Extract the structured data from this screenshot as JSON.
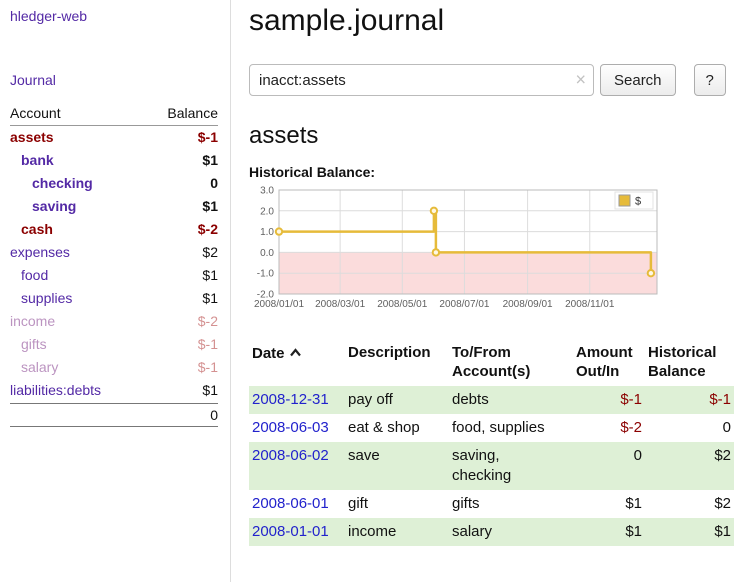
{
  "icons": {
    "clear": "×",
    "sort_asc": "chevron-up"
  },
  "sidebar": {
    "app_title": "hledger-web",
    "nav_journal": "Journal",
    "accounts_header": {
      "account": "Account",
      "balance": "Balance"
    },
    "accounts": [
      {
        "name": "assets",
        "balance": "$-1",
        "indent": 1,
        "name_style": "red-bold",
        "balance_style": "red-bold"
      },
      {
        "name": "bank",
        "balance": "$1",
        "indent": 2,
        "name_style": "purple-bold",
        "balance_style": "black-bold"
      },
      {
        "name": "checking",
        "balance": "0",
        "indent": 3,
        "name_style": "purple-bold",
        "balance_style": "black-bold"
      },
      {
        "name": "saving",
        "balance": "$1",
        "indent": 3,
        "name_style": "purple-bold",
        "balance_style": "black-bold"
      },
      {
        "name": "cash",
        "balance": "$-2",
        "indent": 2,
        "name_style": "red-bold",
        "balance_style": "red-bold"
      },
      {
        "name": "expenses",
        "balance": "$2",
        "indent": 1,
        "name_style": "purple",
        "balance_style": "black"
      },
      {
        "name": "food",
        "balance": "$1",
        "indent": 2,
        "name_style": "purple",
        "balance_style": "black"
      },
      {
        "name": "supplies",
        "balance": "$1",
        "indent": 2,
        "name_style": "purple",
        "balance_style": "black"
      },
      {
        "name": "income",
        "balance": "$-2",
        "indent": 1,
        "name_style": "faded-purple",
        "balance_style": "faded-red"
      },
      {
        "name": "gifts",
        "balance": "$-1",
        "indent": 2,
        "name_style": "faded-purple",
        "balance_style": "faded-red"
      },
      {
        "name": "salary",
        "balance": "$-1",
        "indent": 2,
        "name_style": "faded-purple",
        "balance_style": "faded-red"
      },
      {
        "name": "liabilities:debts",
        "balance": "$1",
        "indent": 1,
        "name_style": "purple",
        "balance_style": "black"
      }
    ],
    "total": "0"
  },
  "main": {
    "title": "sample.journal",
    "search": {
      "value": "inacct:assets",
      "search_button": "Search",
      "help_button": "?"
    },
    "register": {
      "heading": "assets",
      "chart_label": "Historical Balance:",
      "columns": [
        "Date",
        "Description",
        "To/From Account(s)",
        "Amount Out/In",
        "Historical Balance"
      ],
      "rows": [
        {
          "date": "2008-12-31",
          "description": "pay off",
          "accounts_lines": [
            "debts"
          ],
          "amount": "$-1",
          "amount_negative": true,
          "balance": "$-1",
          "balance_negative": true
        },
        {
          "date": "2008-06-03",
          "description": "eat & shop",
          "accounts_lines": [
            "food, supplies"
          ],
          "amount": "$-2",
          "amount_negative": true,
          "balance": "0",
          "balance_negative": false
        },
        {
          "date": "2008-06-02",
          "description": "save",
          "accounts_lines": [
            "saving,",
            "checking"
          ],
          "amount": "0",
          "amount_negative": false,
          "balance": "$2",
          "balance_negative": false
        },
        {
          "date": "2008-06-01",
          "description": "gift",
          "accounts_lines": [
            "gifts"
          ],
          "amount": "$1",
          "amount_negative": false,
          "balance": "$2",
          "balance_negative": false
        },
        {
          "date": "2008-01-01",
          "description": "income",
          "accounts_lines": [
            "salary"
          ],
          "amount": "$1",
          "amount_negative": false,
          "balance": "$1",
          "balance_negative": false
        }
      ]
    }
  },
  "chart_data": {
    "type": "line",
    "step": true,
    "title": "Historical Balance:",
    "series": [
      {
        "name": "$",
        "color": "#e6bb3a",
        "points": [
          [
            "2008-01-01",
            1
          ],
          [
            "2008-06-01",
            2
          ],
          [
            "2008-06-03",
            0
          ],
          [
            "2008-12-31",
            -1
          ]
        ]
      }
    ],
    "x_ticks": [
      "2008/01/01",
      "2008/03/01",
      "2008/05/01",
      "2008/07/01",
      "2008/09/01",
      "2008/11/01"
    ],
    "x_domain": [
      "2008-01-01",
      "2009-01-06"
    ],
    "y_ticks": [
      3,
      2,
      1,
      0,
      -1,
      -2
    ],
    "ylim": [
      -2,
      3
    ],
    "grid": true,
    "below_zero_fill": "#fbdcdc",
    "legend_position": "top-right"
  }
}
